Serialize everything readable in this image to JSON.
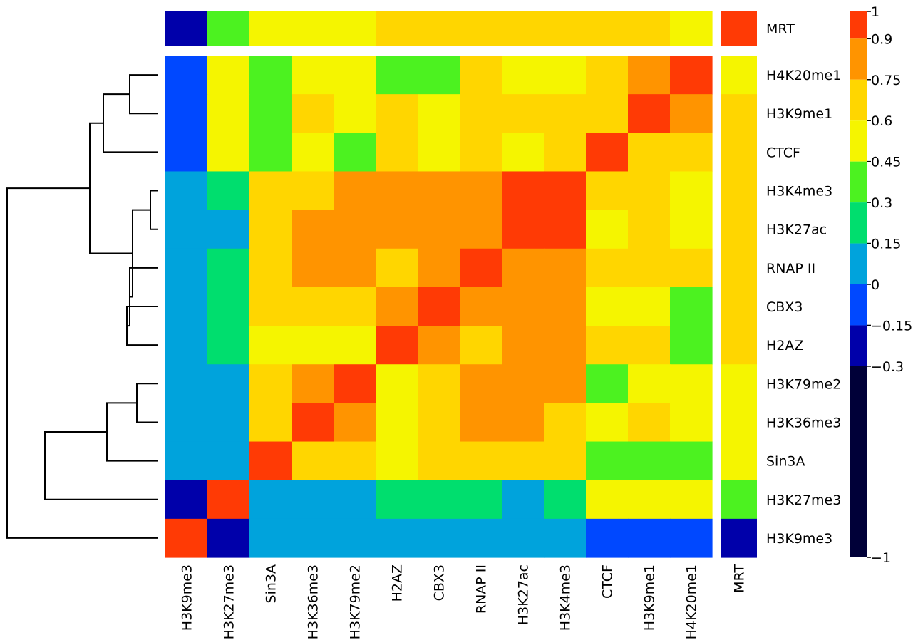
{
  "chart_data": {
    "type": "heatmap",
    "title": "",
    "row_labels": [
      "H4K20me1",
      "H3K9me1",
      "CTCF",
      "H3K4me3",
      "H3K27ac",
      "RNAP II",
      "CBX3",
      "H2AZ",
      "H3K79me2",
      "H3K36me3",
      "Sin3A",
      "H3K27me3",
      "H3K9me3"
    ],
    "col_labels": [
      "H3K9me3",
      "H3K27me3",
      "Sin3A",
      "H3K36me3",
      "H3K79me2",
      "H2AZ",
      "CBX3",
      "RNAP II",
      "H3K27ac",
      "H3K4me3",
      "CTCF",
      "H3K9me1",
      "H4K20me1"
    ],
    "values": [
      [
        -0.1,
        0.5,
        0.35,
        0.5,
        0.5,
        0.35,
        0.35,
        0.65,
        0.5,
        0.5,
        0.65,
        0.8,
        0.95
      ],
      [
        -0.1,
        0.5,
        0.35,
        0.65,
        0.5,
        0.65,
        0.5,
        0.65,
        0.65,
        0.65,
        0.65,
        0.95,
        0.8
      ],
      [
        -0.1,
        0.5,
        0.35,
        0.5,
        0.35,
        0.65,
        0.5,
        0.65,
        0.5,
        0.65,
        0.95,
        0.65,
        0.65
      ],
      [
        0.1,
        0.2,
        0.65,
        0.65,
        0.8,
        0.8,
        0.8,
        0.8,
        0.95,
        0.95,
        0.65,
        0.65,
        0.5
      ],
      [
        0.1,
        0.1,
        0.65,
        0.8,
        0.8,
        0.8,
        0.8,
        0.8,
        0.95,
        0.95,
        0.5,
        0.65,
        0.5
      ],
      [
        0.1,
        0.2,
        0.65,
        0.8,
        0.8,
        0.65,
        0.8,
        0.95,
        0.8,
        0.8,
        0.65,
        0.65,
        0.65
      ],
      [
        0.1,
        0.2,
        0.65,
        0.65,
        0.65,
        0.8,
        0.95,
        0.8,
        0.8,
        0.8,
        0.5,
        0.5,
        0.35
      ],
      [
        0.1,
        0.2,
        0.5,
        0.5,
        0.5,
        0.95,
        0.8,
        0.65,
        0.8,
        0.8,
        0.65,
        0.65,
        0.35
      ],
      [
        0.1,
        0.1,
        0.65,
        0.8,
        0.95,
        0.5,
        0.65,
        0.8,
        0.8,
        0.8,
        0.35,
        0.5,
        0.5
      ],
      [
        0.1,
        0.1,
        0.65,
        0.95,
        0.8,
        0.5,
        0.65,
        0.8,
        0.8,
        0.65,
        0.5,
        0.65,
        0.5
      ],
      [
        0.1,
        0.1,
        0.95,
        0.65,
        0.65,
        0.5,
        0.65,
        0.65,
        0.65,
        0.65,
        0.35,
        0.35,
        0.35
      ],
      [
        -0.2,
        0.95,
        0.1,
        0.1,
        0.1,
        0.2,
        0.2,
        0.2,
        0.1,
        0.2,
        0.5,
        0.5,
        0.5
      ],
      [
        0.95,
        -0.2,
        0.1,
        0.1,
        0.1,
        0.1,
        0.1,
        0.1,
        0.1,
        0.1,
        -0.1,
        -0.1,
        -0.1
      ]
    ],
    "top_row": {
      "label": "MRT",
      "values": [
        -0.2,
        0.35,
        0.5,
        0.5,
        0.5,
        0.65,
        0.65,
        0.65,
        0.65,
        0.65,
        0.65,
        0.65,
        0.5
      ]
    },
    "right_col": {
      "label": "MRT",
      "values": [
        0.5,
        0.65,
        0.65,
        0.65,
        0.65,
        0.65,
        0.65,
        0.65,
        0.5,
        0.5,
        0.5,
        0.35,
        -0.2
      ],
      "top_value": 0.95
    },
    "colorbar": {
      "ticks": [
        1,
        0.9,
        0.75,
        0.6,
        0.45,
        0.3,
        0.15,
        0,
        -0.15,
        -0.3,
        -1
      ],
      "tick_labels": [
        "1",
        "0.9",
        "0.75",
        "0.6",
        "0.45",
        "0.3",
        "0.15",
        "0",
        "−0.15",
        "−0.3",
        "−1"
      ],
      "range": [
        -1,
        1
      ]
    },
    "colors": {
      "bins": [
        {
          "lo": 0.9,
          "hi": 1.0,
          "color": "#ff3a05"
        },
        {
          "lo": 0.75,
          "hi": 0.9,
          "color": "#ff9400"
        },
        {
          "lo": 0.6,
          "hi": 0.75,
          "color": "#ffd600"
        },
        {
          "lo": 0.45,
          "hi": 0.6,
          "color": "#f5f500"
        },
        {
          "lo": 0.3,
          "hi": 0.45,
          "color": "#4cf220"
        },
        {
          "lo": 0.15,
          "hi": 0.3,
          "color": "#00de6e"
        },
        {
          "lo": 0.0,
          "hi": 0.15,
          "color": "#00a3dc"
        },
        {
          "lo": -0.15,
          "hi": 0.0,
          "color": "#0048ff"
        },
        {
          "lo": -0.3,
          "hi": -0.15,
          "color": "#0000aa"
        },
        {
          "lo": -1.0,
          "hi": -0.3,
          "color": "#000038"
        }
      ],
      "dendrogram": "#000000"
    },
    "dendrogram": {
      "leaf_order": [
        "H4K20me1",
        "H3K9me1",
        "CTCF",
        "H3K4me3",
        "H3K27ac",
        "RNAP II",
        "CBX3",
        "H2AZ",
        "H3K79me2",
        "H3K36me3",
        "Sin3A",
        "H3K27me3",
        "H3K9me3"
      ]
    }
  }
}
